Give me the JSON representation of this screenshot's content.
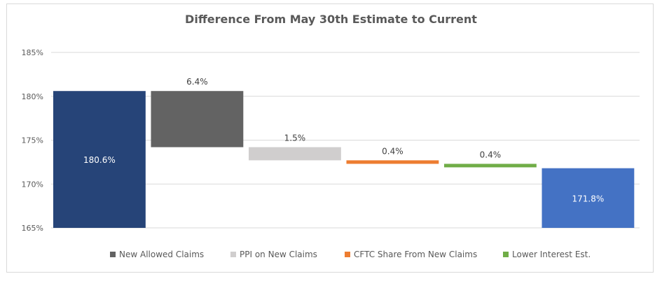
{
  "chart_data": {
    "type": "bar",
    "subtype": "waterfall",
    "title": "Difference From May 30th Estimate to Current",
    "xlabel": "",
    "ylabel": "",
    "ylim": [
      165,
      185
    ],
    "ytick_step": 5,
    "ytick_suffix": "%",
    "grid": true,
    "legend_position": "bottom",
    "bars": [
      {
        "name": "",
        "kind": "total",
        "start": 165,
        "end": 180.6,
        "label": "180.6%",
        "color": "#264478"
      },
      {
        "name": "New Allowed Claims",
        "kind": "step",
        "start": 180.6,
        "end": 174.2,
        "label": "6.4%",
        "color": "#636363"
      },
      {
        "name": "PPI on New Claims",
        "kind": "step",
        "start": 174.2,
        "end": 172.7,
        "label": "1.5%",
        "color": "#d0cece"
      },
      {
        "name": "CFTC Share From New Claims",
        "kind": "step",
        "start": 172.7,
        "end": 172.3,
        "label": "0.4%",
        "color": "#ed7d31"
      },
      {
        "name": "Lower Interest Est.",
        "kind": "step",
        "start": 172.3,
        "end": 171.9,
        "label": "0.4%",
        "color": "#70ad47"
      },
      {
        "name": "",
        "kind": "total",
        "start": 165,
        "end": 171.8,
        "label": "171.8%",
        "color": "#4472c4"
      }
    ],
    "legend": [
      {
        "label": "New Allowed Claims",
        "color": "#636363"
      },
      {
        "label": "PPI on New Claims",
        "color": "#d0cece"
      },
      {
        "label": "CFTC Share From New Claims",
        "color": "#ed7d31"
      },
      {
        "label": "Lower Interest Est.",
        "color": "#70ad47"
      }
    ]
  }
}
